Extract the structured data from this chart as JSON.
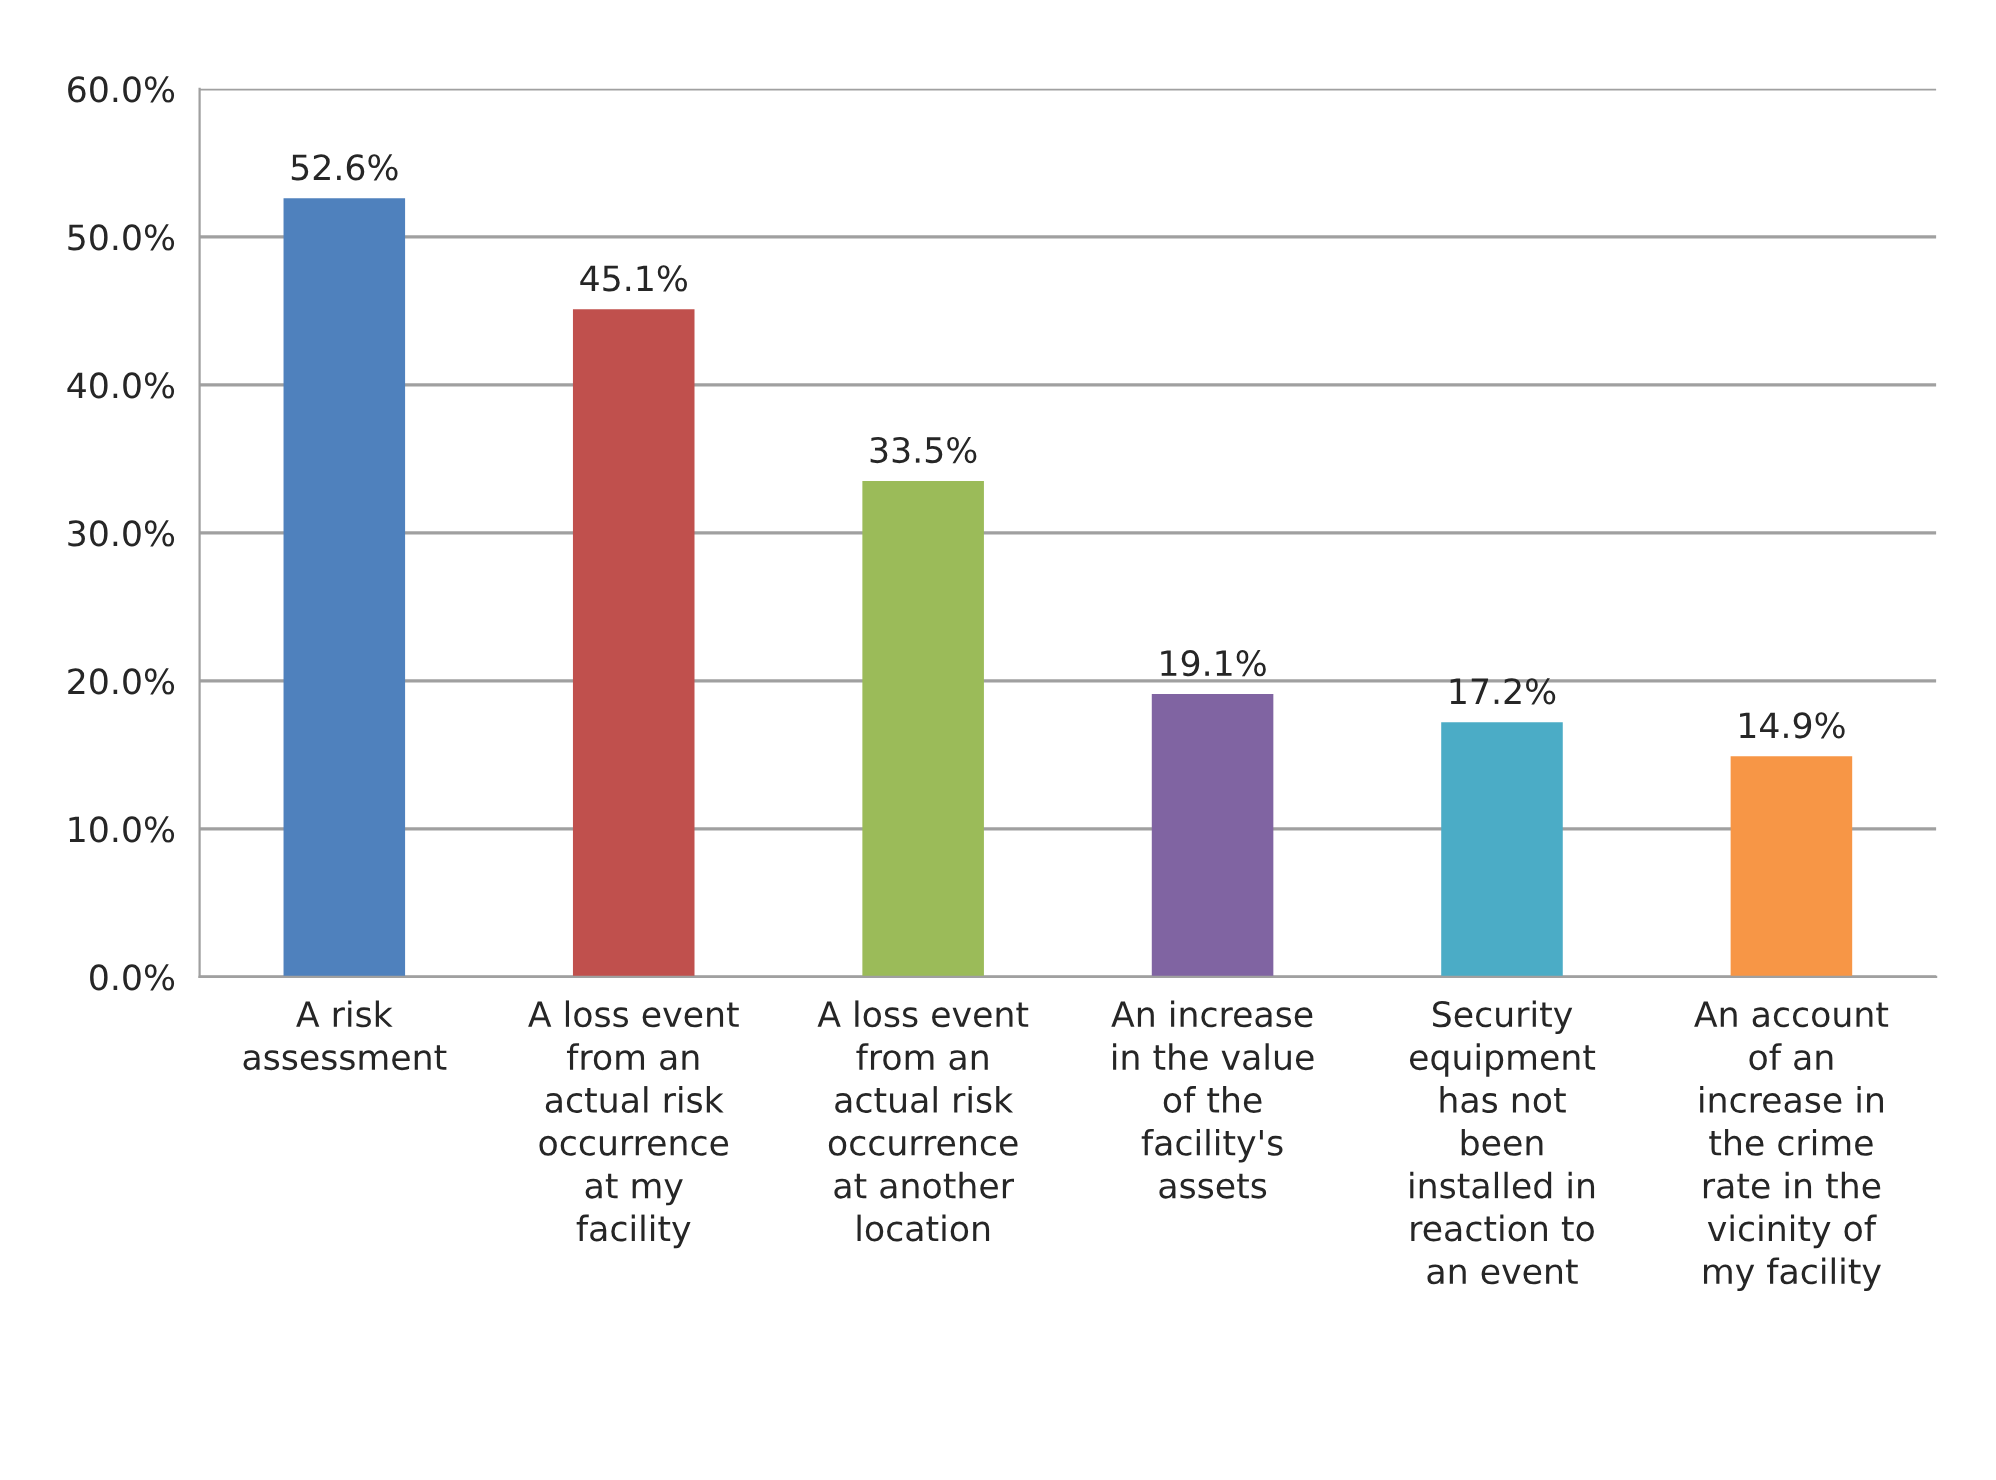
{
  "chart_data": {
    "type": "bar",
    "categories": [
      "A risk\nassessment",
      "A loss event\nfrom an\nactual risk\noccurrence\nat my\nfacility",
      "A loss event\nfrom an\nactual risk\noccurrence\nat another\nlocation",
      "An increase\nin the value\nof the\nfacility's\nassets",
      "Security\nequipment\nhas not\nbeen\ninstalled in\nreaction to\nan event",
      "An account\nof an\nincrease in\nthe crime\nrate in the\nvicinity of\nmy facility"
    ],
    "values": [
      52.6,
      45.1,
      33.5,
      19.1,
      17.2,
      14.9
    ],
    "value_labels": [
      "52.6%",
      "45.1%",
      "33.5%",
      "19.1%",
      "17.2%",
      "14.9%"
    ],
    "colors": [
      "#4f81bd",
      "#c0504d",
      "#9bbb59",
      "#8064a2",
      "#4bacc6",
      "#f79646"
    ],
    "ylim": [
      0,
      60
    ],
    "yticks": [
      {
        "value": 0,
        "label": "0.0%"
      },
      {
        "value": 10,
        "label": "10.0%"
      },
      {
        "value": 20,
        "label": "20.0%"
      },
      {
        "value": 30,
        "label": "30.0%"
      },
      {
        "value": 40,
        "label": "40.0%"
      },
      {
        "value": 50,
        "label": "50.0%"
      },
      {
        "value": 60,
        "label": "60.0%"
      }
    ],
    "grid": "y"
  }
}
